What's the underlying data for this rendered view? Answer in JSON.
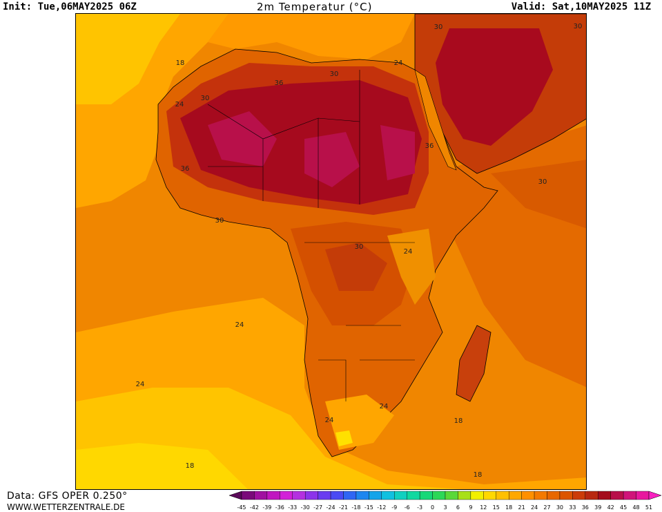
{
  "header": {
    "init": "Init: Tue,06MAY2025 06Z",
    "title": "2m Temperatur (°C)",
    "valid": "Valid: Sat,10MAY2025 11Z"
  },
  "footer": {
    "data_source": "Data: GFS OPER 0.250°",
    "website": "WWW.WETTERZENTRALE.DE"
  },
  "map": {
    "isotherm_labels": [
      {
        "text": "30"
      },
      {
        "text": "30"
      },
      {
        "text": "18"
      },
      {
        "text": "30"
      },
      {
        "text": "36"
      },
      {
        "text": "24"
      },
      {
        "text": "30"
      },
      {
        "text": "24"
      },
      {
        "text": "36"
      },
      {
        "text": "36"
      },
      {
        "text": "30"
      },
      {
        "text": "30"
      },
      {
        "text": "30"
      },
      {
        "text": "24"
      },
      {
        "text": "24"
      },
      {
        "text": "24"
      },
      {
        "text": "24"
      },
      {
        "text": "18"
      },
      {
        "text": "24"
      },
      {
        "text": "18"
      },
      {
        "text": "18"
      }
    ]
  },
  "scale": {
    "ticks": [
      "-45",
      "-42",
      "-39",
      "-36",
      "-33",
      "-30",
      "-27",
      "-24",
      "-21",
      "-18",
      "-15",
      "-12",
      "-9",
      "-6",
      "-3",
      "0",
      "3",
      "6",
      "9",
      "12",
      "15",
      "18",
      "21",
      "24",
      "27",
      "30",
      "33",
      "36",
      "39",
      "42",
      "45",
      "48",
      "51"
    ],
    "colors": [
      "#5a0a5a",
      "#7a0a7a",
      "#a010a0",
      "#c016c0",
      "#d220d8",
      "#b430e0",
      "#8c34ea",
      "#6a3cf0",
      "#4a4af4",
      "#2f66f4",
      "#1e86f0",
      "#14a4ea",
      "#10c0e0",
      "#10d0c0",
      "#10d8a0",
      "#16d878",
      "#2cd858",
      "#5ad838",
      "#a8e018",
      "#f2f000",
      "#ffd800",
      "#ffc000",
      "#ffa800",
      "#ff9000",
      "#f47a00",
      "#e86800",
      "#dc5400",
      "#cc3c08",
      "#b82810",
      "#a40c1c",
      "#b8104a",
      "#d0147a",
      "#e8189e",
      "#f820c0"
    ]
  }
}
